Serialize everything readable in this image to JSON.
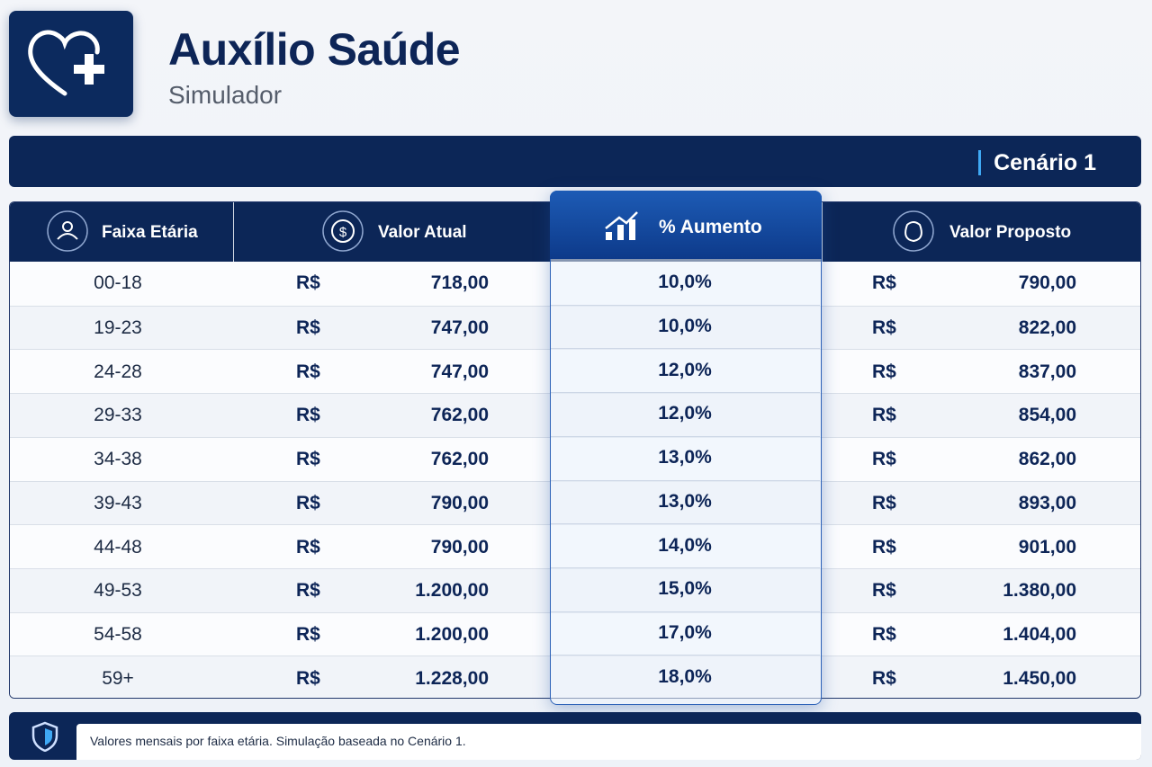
{
  "header": {
    "title": "Auxílio Saúde",
    "subtitle": "Simulador"
  },
  "scenario": "Cenário 1",
  "table": {
    "headers": [
      "Faixa Etária",
      "Valor Atual",
      "% Aumento",
      "Valor Proposto"
    ],
    "rows": [
      [
        "00-18",
        "R$",
        "718,00",
        "10,0%",
        "R$",
        "790,00"
      ],
      [
        "19-23",
        "R$",
        "747,00",
        "10,0%",
        "R$",
        "822,00"
      ],
      [
        "24-28",
        "R$",
        "747,00",
        "12,0%",
        "R$",
        "837,00"
      ],
      [
        "29-33",
        "R$",
        "762,00",
        "12,0%",
        "R$",
        "854,00"
      ],
      [
        "34-38",
        "R$",
        "762,00",
        "13,0%",
        "R$",
        "862,00"
      ],
      [
        "39-43",
        "R$",
        "790,00",
        "13,0%",
        "R$",
        "893,00"
      ],
      [
        "44-48",
        "R$",
        "790,00",
        "14,0%",
        "R$",
        "901,00"
      ],
      [
        "49-53",
        "R$",
        "1.200,00",
        "15,0%",
        "R$",
        "1.380,00"
      ],
      [
        "54-58",
        "R$",
        "1.200,00",
        "17,0%",
        "R$",
        "1.404,00"
      ],
      [
        "59+",
        "R$",
        "1.228,00",
        "18,0%",
        "R$",
        "1.450,00"
      ]
    ]
  },
  "footer": {
    "note": "Valores mensais por faixa etária. Simulação baseada no Cenário 1."
  }
}
